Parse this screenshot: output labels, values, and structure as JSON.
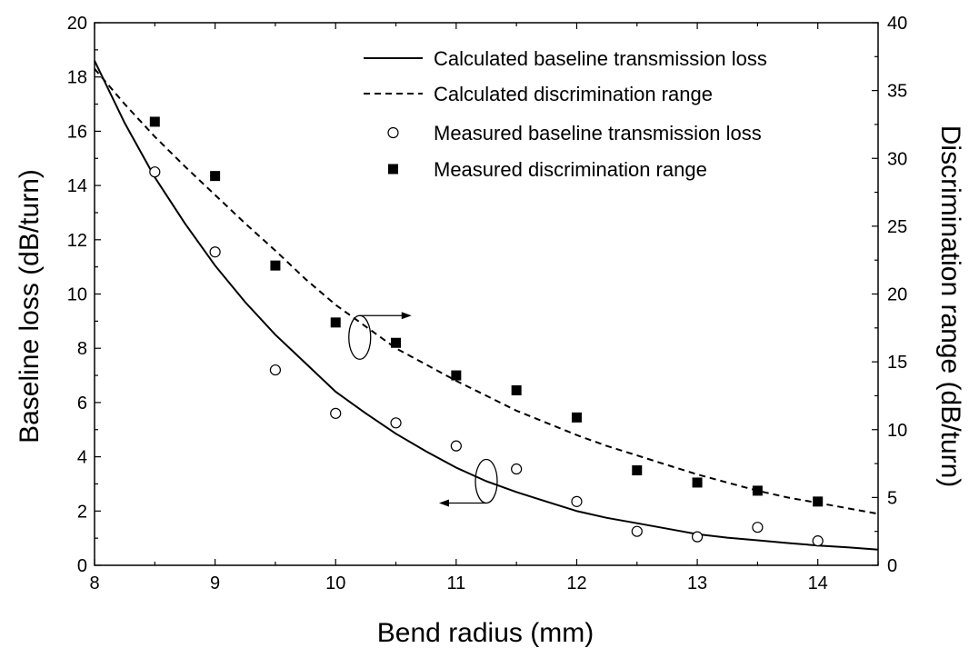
{
  "chart_data": {
    "type": "scatter",
    "xlabel": "Bend radius (mm)",
    "ylabel_left": "Baseline loss (dB/turn)",
    "ylabel_right": "Discrimination range (dB/turn)",
    "xlim": [
      8,
      14.5
    ],
    "ylim_left": [
      0,
      20
    ],
    "ylim_right": [
      0,
      40
    ],
    "xticks": [
      8,
      9,
      10,
      11,
      12,
      13,
      14
    ],
    "yticks_left": [
      0,
      2,
      4,
      6,
      8,
      10,
      12,
      14,
      16,
      18,
      20
    ],
    "yticks_right": [
      0,
      5,
      10,
      15,
      20,
      25,
      30,
      35,
      40
    ],
    "legend_position": "top-right",
    "grid": false,
    "series": [
      {
        "name": "Calculated baseline transmission loss",
        "kind": "line",
        "style": "solid",
        "axis": "left",
        "x": [
          8.0,
          8.25,
          8.5,
          8.75,
          9.0,
          9.25,
          9.5,
          9.75,
          10.0,
          10.25,
          10.5,
          10.75,
          11.0,
          11.25,
          11.5,
          11.75,
          12.0,
          12.25,
          12.5,
          12.75,
          13.0,
          13.25,
          13.5,
          13.75,
          14.0,
          14.25,
          14.5
        ],
        "y": [
          18.6,
          16.3,
          14.3,
          12.6,
          11.05,
          9.7,
          8.5,
          7.45,
          6.4,
          5.6,
          4.85,
          4.2,
          3.6,
          3.1,
          2.7,
          2.35,
          2.0,
          1.75,
          1.55,
          1.35,
          1.15,
          1.02,
          0.92,
          0.82,
          0.73,
          0.66,
          0.58
        ]
      },
      {
        "name": "Calculated discrimination range",
        "kind": "line",
        "style": "dashed",
        "axis": "right",
        "x": [
          8.0,
          8.25,
          8.5,
          8.75,
          9.0,
          9.25,
          9.5,
          9.75,
          10.0,
          10.25,
          10.5,
          10.75,
          11.0,
          11.25,
          11.5,
          11.75,
          12.0,
          12.25,
          12.5,
          12.75,
          13.0,
          13.25,
          13.5,
          13.75,
          14.0,
          14.25,
          14.5
        ],
        "y": [
          36.6,
          34.0,
          31.6,
          29.4,
          27.3,
          25.2,
          23.2,
          21.1,
          19.2,
          17.6,
          16.0,
          14.8,
          13.6,
          12.5,
          11.4,
          10.5,
          9.6,
          8.8,
          8.1,
          7.4,
          6.7,
          6.1,
          5.5,
          5.0,
          4.6,
          4.2,
          3.8
        ]
      },
      {
        "name": "Measured baseline transmission loss",
        "kind": "scatter",
        "marker": "open-circle",
        "axis": "left",
        "x": [
          8.5,
          9.0,
          9.5,
          10.0,
          10.5,
          11.0,
          11.5,
          12.0,
          12.5,
          13.0,
          13.5,
          14.0
        ],
        "y": [
          14.5,
          11.55,
          7.2,
          5.6,
          5.25,
          4.4,
          3.55,
          2.35,
          1.25,
          1.05,
          1.4,
          0.9
        ]
      },
      {
        "name": "Measured discrimination range",
        "kind": "scatter",
        "marker": "filled-square",
        "axis": "right",
        "x": [
          8.5,
          9.0,
          9.5,
          10.0,
          10.5,
          11.0,
          11.5,
          12.0,
          12.5,
          13.0,
          13.5,
          14.0
        ],
        "y": [
          32.7,
          28.7,
          22.1,
          17.9,
          16.4,
          14.0,
          12.9,
          10.9,
          7.0,
          6.1,
          5.5,
          4.7
        ]
      }
    ],
    "annotations": [
      {
        "type": "ellipse-arrow",
        "x": 10.2,
        "y_left": 8.4,
        "direction": "right",
        "meaning": "dashed curve uses right axis"
      },
      {
        "type": "ellipse-arrow",
        "x": 11.25,
        "y_left": 3.1,
        "direction": "left",
        "meaning": "solid curve uses left axis"
      }
    ]
  }
}
